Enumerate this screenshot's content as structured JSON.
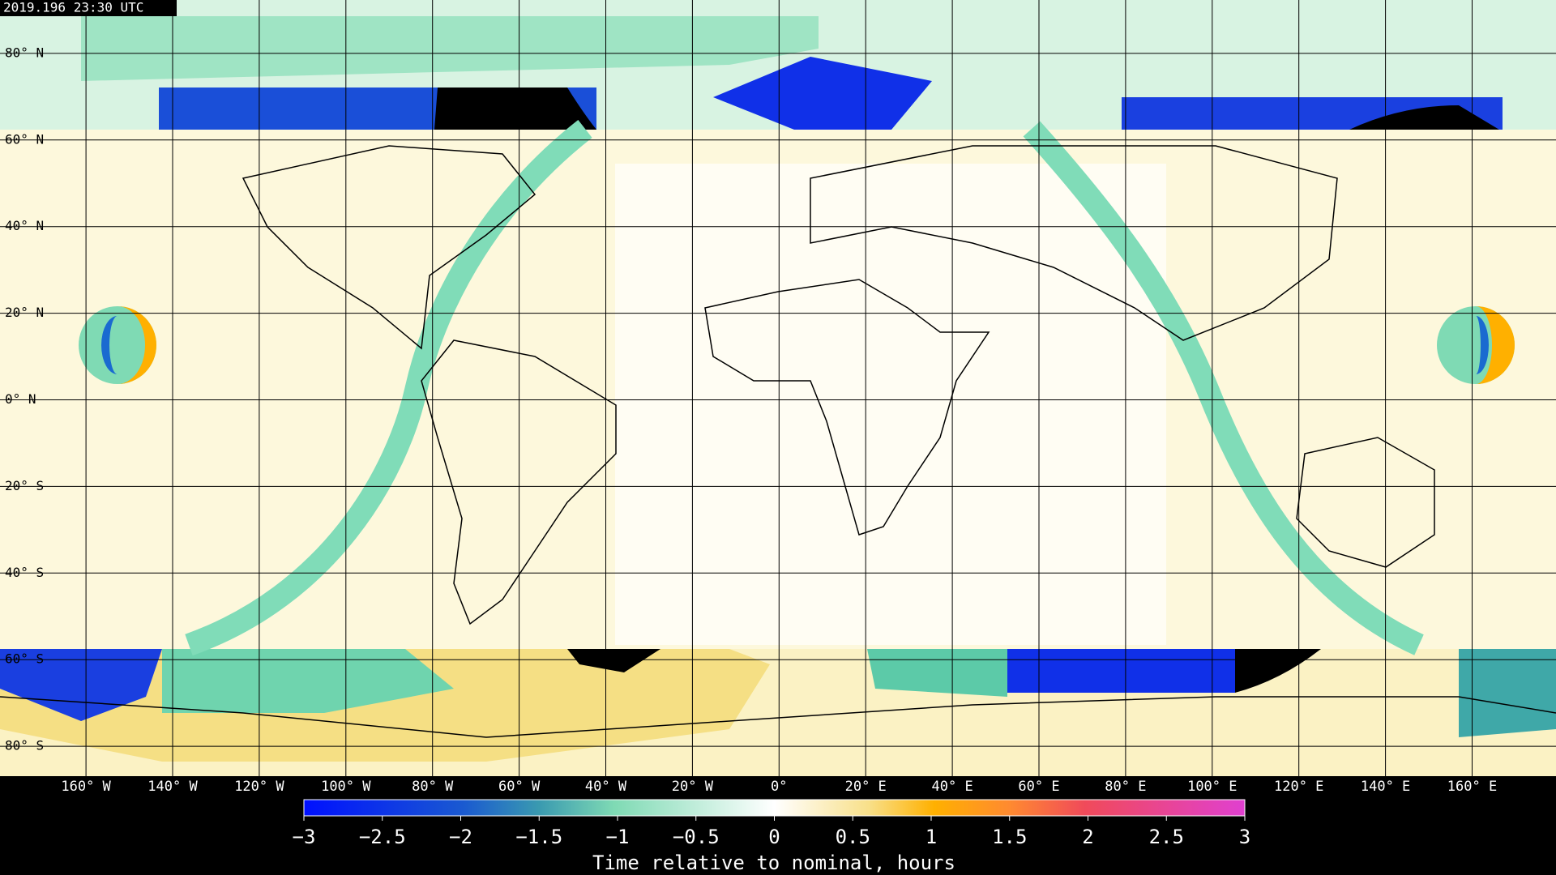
{
  "timestamp": "2019.196 23:30 UTC",
  "lat_labels": [
    {
      "value": 80,
      "label": "80° N"
    },
    {
      "value": 60,
      "label": "60° N"
    },
    {
      "value": 40,
      "label": "40° N"
    },
    {
      "value": 20,
      "label": "20° N"
    },
    {
      "value": 0,
      "label": "0° N"
    },
    {
      "value": -20,
      "label": "20° S"
    },
    {
      "value": -40,
      "label": "40° S"
    },
    {
      "value": -60,
      "label": "60° S"
    },
    {
      "value": -80,
      "label": "80° S"
    }
  ],
  "lon_labels": [
    {
      "value": -160,
      "label": "160° W"
    },
    {
      "value": -140,
      "label": "140° W"
    },
    {
      "value": -120,
      "label": "120° W"
    },
    {
      "value": -100,
      "label": "100° W"
    },
    {
      "value": -80,
      "label": "80° W"
    },
    {
      "value": -60,
      "label": "60° W"
    },
    {
      "value": -40,
      "label": "40° W"
    },
    {
      "value": -20,
      "label": "20° W"
    },
    {
      "value": 0,
      "label": "0°"
    },
    {
      "value": 20,
      "label": "20° E"
    },
    {
      "value": 40,
      "label": "40° E"
    },
    {
      "value": 60,
      "label": "60° E"
    },
    {
      "value": 80,
      "label": "80° E"
    },
    {
      "value": 100,
      "label": "100° E"
    },
    {
      "value": 120,
      "label": "120° E"
    },
    {
      "value": 140,
      "label": "140° E"
    },
    {
      "value": 160,
      "label": "160° E"
    }
  ],
  "colorbar": {
    "title": "Time relative to nominal, hours",
    "range": [
      -3,
      3
    ],
    "ticks": [
      {
        "value": -3,
        "label": "−3"
      },
      {
        "value": -2.5,
        "label": "−2.5"
      },
      {
        "value": -2,
        "label": "−2"
      },
      {
        "value": -1.5,
        "label": "−1.5"
      },
      {
        "value": -1,
        "label": "−1"
      },
      {
        "value": -0.5,
        "label": "−0.5"
      },
      0,
      0.5,
      1,
      1.5,
      2,
      2.5,
      3
    ]
  }
}
